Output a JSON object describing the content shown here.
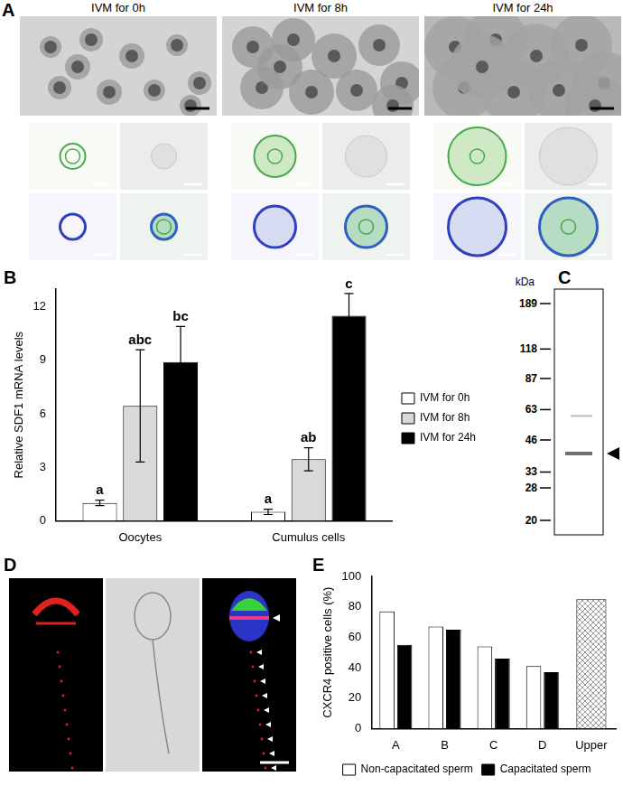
{
  "figure": {
    "panel_a": {
      "label": "A",
      "columns": [
        "IVM for 0h",
        "IVM for 8h",
        "IVM for 24h"
      ]
    },
    "panel_c": {
      "label": "C",
      "unit": "kDa",
      "markers": [
        189,
        118,
        87,
        63,
        46,
        33,
        28,
        20
      ],
      "band": 40
    },
    "panel_d": {
      "label": "D"
    }
  },
  "chart_data": [
    {
      "panel": "B",
      "type": "bar",
      "y_label": "Relative SDF1 mRNA levels",
      "categories": [
        "Oocytes",
        "Cumulus cells"
      ],
      "series": [
        {
          "name": "IVM for 0h",
          "color": "#ffffff",
          "values": [
            1.0,
            0.5
          ],
          "errors": [
            0.15,
            0.15
          ],
          "annotations": [
            "a",
            "a"
          ]
        },
        {
          "name": "IVM for 8h",
          "color": "#d9d9d9",
          "values": [
            6.45,
            3.45
          ],
          "errors": [
            3.15,
            0.65
          ],
          "annotations": [
            "abc",
            "ab"
          ]
        },
        {
          "name": "IVM for 24h",
          "color": "#000000",
          "values": [
            8.9,
            11.5
          ],
          "errors": [
            2.0,
            1.25
          ],
          "annotations": [
            "bc",
            "c"
          ]
        }
      ],
      "ylim": [
        0,
        13
      ],
      "yticks": [
        0,
        3,
        6,
        9,
        12
      ],
      "grid": false,
      "legend": "right"
    },
    {
      "panel": "E",
      "type": "bar",
      "y_label": "CXCR4 positive cells (%)",
      "categories": [
        "A",
        "B",
        "C",
        "D",
        "Upper"
      ],
      "series": [
        {
          "name": "Non-capacitated sperm",
          "color": "#ffffff",
          "values": [
            77,
            67,
            54,
            41,
            null
          ]
        },
        {
          "name": "Capacitated sperm",
          "color": "#000000",
          "values": [
            55,
            65,
            46,
            37,
            null
          ]
        },
        {
          "color": "#999999",
          "values": [
            null,
            null,
            null,
            null,
            85
          ]
        }
      ],
      "ylim": [
        0,
        100
      ],
      "yticks": [
        0,
        20,
        40,
        60,
        80,
        100
      ],
      "grid": false,
      "legend": "bottom"
    }
  ]
}
